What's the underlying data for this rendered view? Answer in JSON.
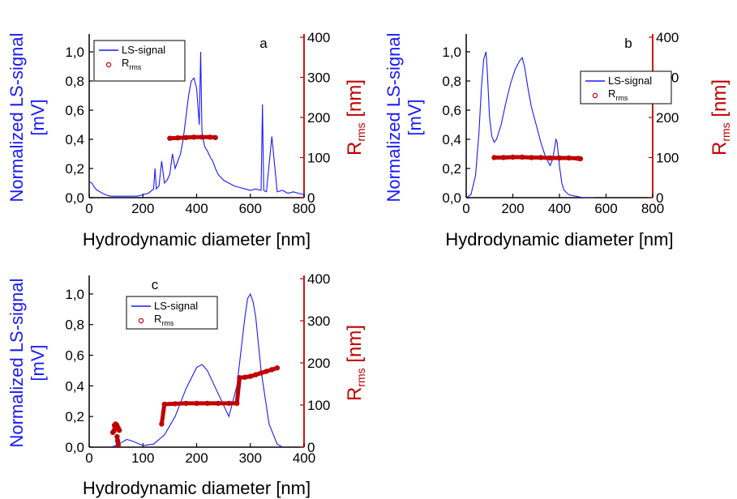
{
  "colors": {
    "signal": "#1a1aff",
    "rrms": "#c00000",
    "axis": "#000000"
  },
  "chart_data": [
    {
      "type": "line",
      "panel_label": "a",
      "xlabel": "Hydrodynamic diameter [nm]",
      "ylabel_left_line1": "Normalized LS-signal",
      "ylabel_left_line2": "[mV]",
      "ylabel_right_main": "R",
      "ylabel_right_sub": "rms",
      "ylabel_right_unit": " [nm]",
      "xlim": [
        0,
        800
      ],
      "ylim_left": [
        0,
        1.1
      ],
      "ylim_right": [
        0,
        400
      ],
      "xticks": [
        0,
        200,
        400,
        600,
        800
      ],
      "xtick_labels": [
        "0",
        "200",
        "400",
        "600",
        "800"
      ],
      "yticks_left": [
        0,
        0.2,
        0.4,
        0.6,
        0.8,
        1.0
      ],
      "ytick_labels_left": [
        "0,0",
        "0,2",
        "0,4",
        "0,6",
        "0,8",
        "1,0"
      ],
      "yticks_right": [
        0,
        100,
        200,
        300,
        400
      ],
      "ytick_labels_right": [
        "0",
        "100",
        "200",
        "300",
        "400"
      ],
      "legend": {
        "placement": "top-left",
        "signal_label": "LS-signal",
        "rrms_main": "R",
        "rrms_sub": "rms"
      },
      "series": [
        {
          "name": "LS-signal",
          "axis": "left",
          "x": [
            0,
            10,
            20,
            30,
            40,
            60,
            80,
            100,
            120,
            150,
            180,
            200,
            220,
            240,
            245,
            250,
            260,
            270,
            280,
            290,
            300,
            310,
            320,
            330,
            340,
            350,
            360,
            370,
            380,
            390,
            400,
            410,
            415,
            420,
            430,
            440,
            450,
            460,
            470,
            480,
            490,
            500,
            520,
            540,
            560,
            580,
            600,
            620,
            640,
            645,
            650,
            660,
            680,
            700,
            720,
            740,
            760,
            780,
            800
          ],
          "y": [
            0.11,
            0.1,
            0.07,
            0.05,
            0.04,
            0.02,
            0.01,
            0.01,
            0.01,
            0.01,
            0.01,
            0.02,
            0.03,
            0.06,
            0.2,
            0.06,
            0.08,
            0.25,
            0.1,
            0.12,
            0.16,
            0.3,
            0.2,
            0.25,
            0.3,
            0.4,
            0.55,
            0.7,
            0.8,
            0.82,
            0.75,
            0.5,
            1.0,
            0.45,
            0.35,
            0.32,
            0.28,
            0.25,
            0.2,
            0.16,
            0.14,
            0.12,
            0.1,
            0.08,
            0.07,
            0.06,
            0.05,
            0.06,
            0.05,
            0.64,
            0.05,
            0.04,
            0.42,
            0.04,
            0.05,
            0.03,
            0.04,
            0.03,
            0.02
          ]
        },
        {
          "name": "Rrms",
          "axis": "right",
          "x": [
            300,
            330,
            360,
            390,
            420,
            450,
            470
          ],
          "y": [
            148,
            149,
            150,
            151,
            151,
            151,
            150
          ]
        }
      ]
    },
    {
      "type": "line",
      "panel_label": "b",
      "xlabel": "Hydrodynamic diameter [nm]",
      "ylabel_left_line1": "Normalized LS-signal",
      "ylabel_left_line2": "[mV]",
      "ylabel_right_main": "R",
      "ylabel_right_sub": "rms",
      "ylabel_right_unit": " [nm]",
      "xlim": [
        0,
        800
      ],
      "ylim_left": [
        0,
        1.1
      ],
      "ylim_right": [
        0,
        400
      ],
      "xticks": [
        0,
        200,
        400,
        600,
        800
      ],
      "xtick_labels": [
        "0",
        "200",
        "400",
        "600",
        "800"
      ],
      "yticks_left": [
        0,
        0.2,
        0.4,
        0.6,
        0.8,
        1.0
      ],
      "ytick_labels_left": [
        "0,0",
        "0,2",
        "0,4",
        "0,6",
        "0,8",
        "1,0"
      ],
      "yticks_right": [
        0,
        100,
        200,
        300,
        400
      ],
      "ytick_labels_right": [
        "0",
        "100",
        "200",
        "300",
        "400"
      ],
      "legend": {
        "placement": "right",
        "signal_label": "LS-signal",
        "rrms_main": "R",
        "rrms_sub": "rms"
      },
      "series": [
        {
          "name": "LS-signal",
          "axis": "left",
          "x": [
            0,
            20,
            40,
            55,
            65,
            75,
            85,
            90,
            100,
            110,
            120,
            130,
            150,
            170,
            190,
            210,
            230,
            240,
            250,
            265,
            280,
            300,
            320,
            340,
            360,
            370,
            380,
            385,
            390,
            400,
            410,
            420,
            440,
            470,
            500,
            550
          ],
          "y": [
            0.0,
            0.02,
            0.15,
            0.45,
            0.75,
            0.95,
            1.0,
            0.88,
            0.55,
            0.42,
            0.38,
            0.4,
            0.5,
            0.65,
            0.78,
            0.88,
            0.94,
            0.96,
            0.9,
            0.75,
            0.62,
            0.5,
            0.38,
            0.28,
            0.22,
            0.26,
            0.35,
            0.4,
            0.38,
            0.22,
            0.1,
            0.05,
            0.02,
            0.01,
            0.0,
            0.0
          ]
        },
        {
          "name": "Rrms",
          "axis": "right",
          "x": [
            120,
            160,
            200,
            240,
            280,
            320,
            360,
            400,
            440,
            480,
            490
          ],
          "y": [
            100,
            100,
            101,
            101,
            100,
            100,
            99,
            99,
            99,
            98,
            97
          ]
        }
      ]
    },
    {
      "type": "line",
      "panel_label": "c",
      "xlabel": "Hydrodynamic diameter [nm]",
      "ylabel_left_line1": "Normalized LS-signal",
      "ylabel_left_line2": "[mV]",
      "ylabel_right_main": "R",
      "ylabel_right_sub": "rms",
      "ylabel_right_unit": " [nm]",
      "xlim": [
        0,
        400
      ],
      "ylim_left": [
        0,
        1.1
      ],
      "ylim_right": [
        0,
        400
      ],
      "xticks": [
        0,
        100,
        200,
        300,
        400
      ],
      "xtick_labels": [
        "0",
        "100",
        "200",
        "300",
        "400"
      ],
      "yticks_left": [
        0,
        0.2,
        0.4,
        0.6,
        0.8,
        1.0
      ],
      "ytick_labels_left": [
        "0,0",
        "0,2",
        "0,4",
        "0,6",
        "0,8",
        "1,0"
      ],
      "yticks_right": [
        0,
        100,
        200,
        300,
        400
      ],
      "ytick_labels_right": [
        "0",
        "100",
        "200",
        "300",
        "400"
      ],
      "legend": {
        "placement": "top-center",
        "signal_label": "LS-signal",
        "rrms_main": "R",
        "rrms_sub": "rms"
      },
      "series": [
        {
          "name": "LS-signal",
          "axis": "left",
          "x": [
            40,
            50,
            60,
            70,
            80,
            100,
            120,
            140,
            160,
            180,
            200,
            210,
            220,
            240,
            260,
            275,
            285,
            290,
            295,
            300,
            305,
            310,
            320,
            335,
            350,
            360
          ],
          "y": [
            0.0,
            0.01,
            0.03,
            0.05,
            0.04,
            0.01,
            0.02,
            0.08,
            0.2,
            0.38,
            0.52,
            0.54,
            0.5,
            0.35,
            0.2,
            0.4,
            0.7,
            0.85,
            0.97,
            1.0,
            0.95,
            0.85,
            0.5,
            0.15,
            0.02,
            0.0
          ]
        },
        {
          "name": "Rrms",
          "axis": "right",
          "x": [
            44,
            46,
            48,
            50,
            52,
            54,
            56,
            47,
            49,
            51,
            53,
            55,
            52,
            53,
            54,
            135,
            140,
            160,
            180,
            200,
            220,
            240,
            260,
            275,
            280,
            290,
            300,
            310,
            320,
            330,
            340,
            350
          ],
          "y": [
            35,
            38,
            45,
            48,
            50,
            45,
            40,
            52,
            55,
            53,
            47,
            42,
            25,
            15,
            5,
            55,
            102,
            103,
            104,
            104,
            104,
            104,
            104,
            104,
            165,
            166,
            168,
            172,
            176,
            180,
            184,
            188
          ]
        }
      ]
    }
  ]
}
